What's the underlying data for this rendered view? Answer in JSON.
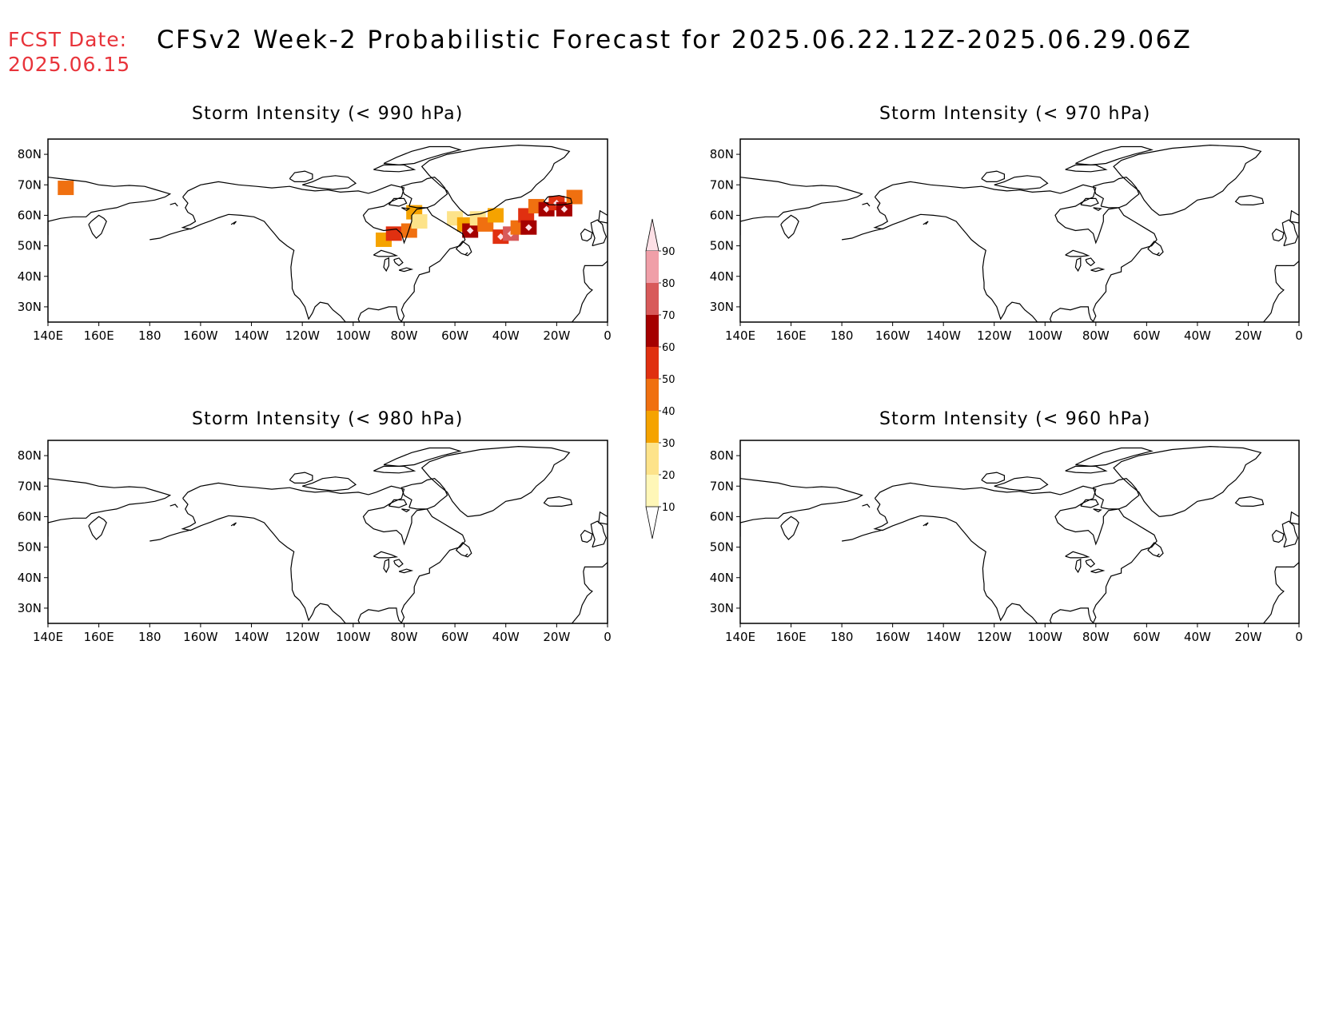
{
  "fcst_date_label": "FCST Date:",
  "fcst_date_value": "2025.06.15",
  "title": "CFSv2 Week-2 Probabilistic Forecast for 2025.06.22.12Z-2025.06.29.06Z",
  "colors": {
    "fcst_text": "#e8333a",
    "scale": [
      "#fff7b8",
      "#fde38a",
      "#f5a300",
      "#f07010",
      "#e03010",
      "#a50000",
      "#d85a5a",
      "#f09fa8",
      "#fde0e6"
    ]
  },
  "panels": [
    {
      "id": "p990",
      "title": "Storm Intensity (< 990 hPa)"
    },
    {
      "id": "p970",
      "title": "Storm Intensity (< 970 hPa)"
    },
    {
      "id": "p980",
      "title": "Storm Intensity (< 980 hPa)"
    },
    {
      "id": "p960",
      "title": "Storm Intensity (< 960 hPa)"
    }
  ],
  "lon_labels": [
    "140E",
    "160E",
    "180",
    "160W",
    "140W",
    "120W",
    "100W",
    "80W",
    "60W",
    "40W",
    "20W",
    "0"
  ],
  "lat_labels": [
    "80N",
    "70N",
    "60N",
    "50N",
    "40N",
    "30N"
  ],
  "colorbar_labels": [
    "90",
    "80",
    "70",
    "60",
    "50",
    "40",
    "30",
    "20",
    "10"
  ],
  "probability_cells_990": [
    {
      "lon": 147,
      "lat": 69,
      "p": 40
    },
    {
      "lon": 272,
      "lat": 52,
      "p": 35
    },
    {
      "lon": 276,
      "lat": 54,
      "p": 50
    },
    {
      "lon": 282,
      "lat": 55,
      "p": 45
    },
    {
      "lon": 284,
      "lat": 61,
      "p": 30
    },
    {
      "lon": 286,
      "lat": 58,
      "p": 20
    },
    {
      "lon": 300,
      "lat": 59,
      "p": 20
    },
    {
      "lon": 304,
      "lat": 57,
      "p": 30
    },
    {
      "lon": 306,
      "lat": 55,
      "p": 60
    },
    {
      "lon": 309,
      "lat": 59,
      "p": 20
    },
    {
      "lon": 312,
      "lat": 57,
      "p": 40
    },
    {
      "lon": 316,
      "lat": 60,
      "p": 30
    },
    {
      "lon": 318,
      "lat": 53,
      "p": 55
    },
    {
      "lon": 322,
      "lat": 54,
      "p": 70
    },
    {
      "lon": 325,
      "lat": 56,
      "p": 40
    },
    {
      "lon": 328,
      "lat": 60,
      "p": 50
    },
    {
      "lon": 329,
      "lat": 56,
      "p": 65
    },
    {
      "lon": 332,
      "lat": 63,
      "p": 45
    },
    {
      "lon": 336,
      "lat": 62,
      "p": 60
    },
    {
      "lon": 340,
      "lat": 64,
      "p": 55
    },
    {
      "lon": 343,
      "lat": 62,
      "p": 65
    },
    {
      "lon": 347,
      "lat": 66,
      "p": 45
    }
  ]
}
